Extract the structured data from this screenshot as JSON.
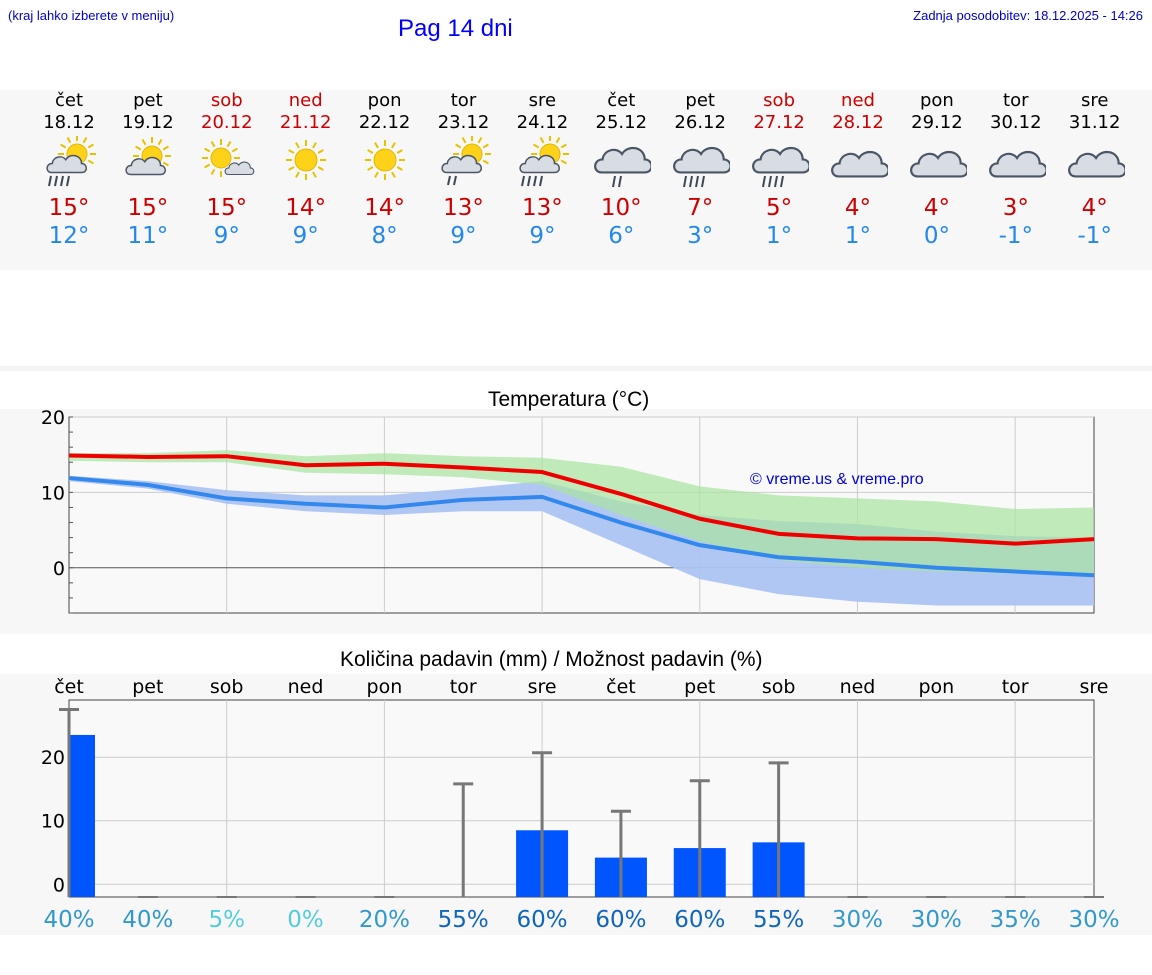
{
  "header": {
    "hint": "(kraj lahko izberete v meniju)",
    "title": "Pag 14 dni",
    "updated": "Zadnja posodobitev: 18.12.2025 - 14:26"
  },
  "days": [
    {
      "name": "čet",
      "date": "18.12",
      "weekend": false,
      "icon": "sun-cloud-rain-icon",
      "tmax": "15°",
      "tmin": "12°"
    },
    {
      "name": "pet",
      "date": "19.12",
      "weekend": false,
      "icon": "sun-cloud-icon",
      "tmax": "15°",
      "tmin": "11°"
    },
    {
      "name": "sob",
      "date": "20.12",
      "weekend": true,
      "icon": "sun-small-cloud-icon",
      "tmax": "15°",
      "tmin": "9°"
    },
    {
      "name": "ned",
      "date": "21.12",
      "weekend": true,
      "icon": "sun-icon",
      "tmax": "14°",
      "tmin": "9°"
    },
    {
      "name": "pon",
      "date": "22.12",
      "weekend": false,
      "icon": "sun-icon",
      "tmax": "14°",
      "tmin": "8°"
    },
    {
      "name": "tor",
      "date": "23.12",
      "weekend": false,
      "icon": "sun-cloud-drizzle-icon",
      "tmax": "13°",
      "tmin": "9°"
    },
    {
      "name": "sre",
      "date": "24.12",
      "weekend": false,
      "icon": "sun-cloud-rain-icon",
      "tmax": "13°",
      "tmin": "9°"
    },
    {
      "name": "čet",
      "date": "25.12",
      "weekend": false,
      "icon": "cloud-drizzle-icon",
      "tmax": "10°",
      "tmin": "6°"
    },
    {
      "name": "pet",
      "date": "26.12",
      "weekend": false,
      "icon": "cloud-rain-icon",
      "tmax": "7°",
      "tmin": "3°"
    },
    {
      "name": "sob",
      "date": "27.12",
      "weekend": true,
      "icon": "cloud-rain-icon",
      "tmax": "5°",
      "tmin": "1°"
    },
    {
      "name": "ned",
      "date": "28.12",
      "weekend": true,
      "icon": "cloud-icon",
      "tmax": "4°",
      "tmin": "1°"
    },
    {
      "name": "pon",
      "date": "29.12",
      "weekend": false,
      "icon": "cloud-icon",
      "tmax": "4°",
      "tmin": "0°"
    },
    {
      "name": "tor",
      "date": "30.12",
      "weekend": false,
      "icon": "cloud-icon",
      "tmax": "3°",
      "tmin": "-1°"
    },
    {
      "name": "sre",
      "date": "31.12",
      "weekend": false,
      "icon": "cloud-icon",
      "tmax": "4°",
      "tmin": "-1°"
    }
  ],
  "colors": {
    "max_line": "#ee0000",
    "min_line": "#3388ee",
    "max_band": "#a9e4a0",
    "min_band": "#adc4f2",
    "overlap_band": "#79c8a8",
    "bar": "#0055ff",
    "whisker": "#777777",
    "prob_low": "#55ccdd",
    "prob_mid": "#3399cc",
    "prob_high": "#1166bb"
  },
  "chart_data": [
    {
      "type": "line",
      "title": "Temperatura (°C)",
      "watermark": "© vreme.us & vreme.pro",
      "ylim": [
        -6,
        20
      ],
      "yticks": [
        0,
        10,
        20
      ],
      "x": [
        0,
        1,
        2,
        3,
        4,
        5,
        6,
        7,
        8,
        9,
        10,
        11,
        12,
        13
      ],
      "series": [
        {
          "name": "max",
          "values": [
            14.9,
            14.7,
            14.8,
            13.6,
            13.8,
            13.3,
            12.7,
            9.8,
            6.5,
            4.5,
            3.9,
            3.8,
            3.2,
            3.8
          ],
          "band_low": [
            14.2,
            14.0,
            14.0,
            12.6,
            12.4,
            12.0,
            11.0,
            7.0,
            3.5,
            1.0,
            0.0,
            -0.5,
            -0.8,
            -1.0
          ],
          "band_high": [
            15.2,
            15.2,
            15.6,
            14.8,
            15.2,
            14.8,
            14.6,
            13.4,
            10.8,
            9.6,
            9.2,
            8.8,
            7.8,
            8.0
          ]
        },
        {
          "name": "min",
          "values": [
            11.9,
            11.0,
            9.2,
            8.5,
            8.0,
            9.0,
            9.4,
            6.0,
            3.0,
            1.4,
            0.8,
            0.0,
            -0.5,
            -1.0
          ],
          "band_low": [
            11.5,
            10.5,
            8.5,
            7.5,
            7.0,
            7.5,
            7.5,
            3.0,
            -1.5,
            -3.5,
            -4.5,
            -5.0,
            -5.0,
            -5.0
          ],
          "band_high": [
            12.2,
            11.5,
            10.3,
            9.6,
            9.6,
            10.5,
            11.5,
            8.8,
            7.0,
            6.2,
            5.8,
            4.8,
            4.2,
            4.0
          ]
        }
      ]
    },
    {
      "type": "bar",
      "title": "Količina padavin (mm) / Možnost padavin (%)",
      "categories": [
        "čet",
        "pet",
        "sob",
        "ned",
        "pon",
        "tor",
        "sre",
        "čet",
        "pet",
        "sob",
        "ned",
        "pon",
        "tor",
        "sre"
      ],
      "values": [
        23.5,
        0,
        0,
        0,
        0,
        0,
        8.5,
        4.2,
        5.7,
        6.6,
        0,
        0,
        0,
        0
      ],
      "whisker_max": [
        27.5,
        0,
        0,
        0,
        0,
        15.8,
        20.7,
        11.5,
        16.3,
        19.1,
        0,
        0,
        0,
        0
      ],
      "ylim": [
        -2,
        29
      ],
      "yticks": [
        0,
        10,
        20
      ],
      "probabilities": [
        "40%",
        "40%",
        "5%",
        "0%",
        "20%",
        "55%",
        "60%",
        "60%",
        "60%",
        "55%",
        "30%",
        "30%",
        "35%",
        "30%"
      ],
      "probability_levels": [
        "mid",
        "mid",
        "low",
        "low",
        "mid",
        "high",
        "high",
        "high",
        "high",
        "high",
        "mid",
        "mid",
        "mid",
        "mid"
      ]
    }
  ]
}
